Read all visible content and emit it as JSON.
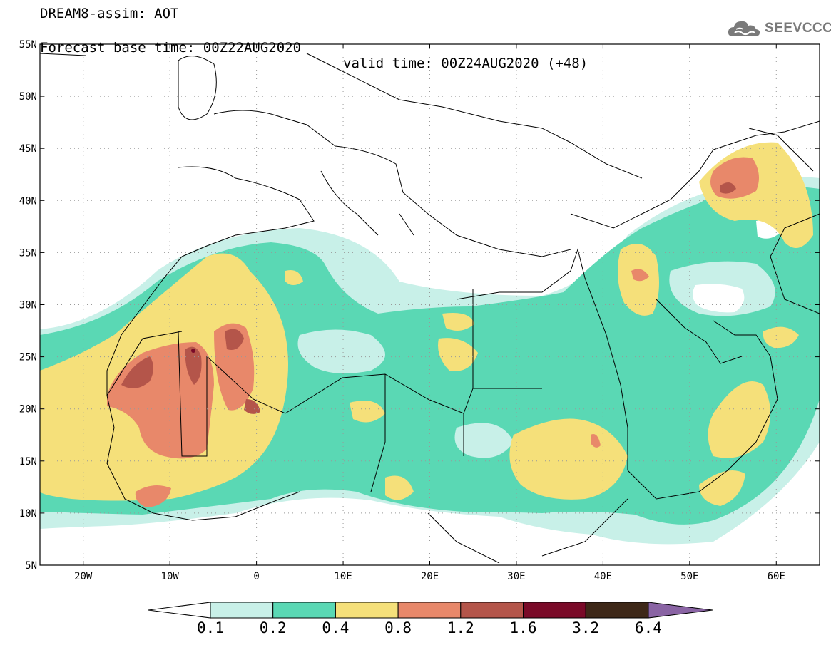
{
  "title": {
    "line1": "DREAM8-assim: AOT",
    "base_time": "Forecast base time: 00Z22AUG2020",
    "valid_time": "valid time: 00Z24AUG2020 (+48)"
  },
  "logo": {
    "text": "SEEVCCC",
    "icon": "cloud-icon"
  },
  "map": {
    "lon_range": [
      -25,
      65
    ],
    "lat_range": [
      5,
      55
    ],
    "lon_ticks": [
      {
        "value": -20,
        "label": "20W"
      },
      {
        "value": -10,
        "label": "10W"
      },
      {
        "value": 0,
        "label": "0"
      },
      {
        "value": 10,
        "label": "10E"
      },
      {
        "value": 20,
        "label": "20E"
      },
      {
        "value": 30,
        "label": "30E"
      },
      {
        "value": 40,
        "label": "40E"
      },
      {
        "value": 50,
        "label": "50E"
      },
      {
        "value": 60,
        "label": "60E"
      }
    ],
    "lat_ticks": [
      {
        "value": 5,
        "label": "5N"
      },
      {
        "value": 10,
        "label": "10N"
      },
      {
        "value": 15,
        "label": "15N"
      },
      {
        "value": 20,
        "label": "20N"
      },
      {
        "value": 25,
        "label": "25N"
      },
      {
        "value": 30,
        "label": "30N"
      },
      {
        "value": 35,
        "label": "35N"
      },
      {
        "value": 40,
        "label": "40N"
      },
      {
        "value": 45,
        "label": "45N"
      },
      {
        "value": 50,
        "label": "50N"
      },
      {
        "value": 55,
        "label": "55N"
      }
    ]
  },
  "colorbar": {
    "levels": [
      "0.1",
      "0.2",
      "0.4",
      "0.8",
      "1.2",
      "1.6",
      "3.2",
      "6.4"
    ],
    "colors": [
      "#c8f0e8",
      "#5ad8b4",
      "#f5e07a",
      "#e8886a",
      "#b4554a",
      "#7a0a28",
      "#3e2818"
    ],
    "below_color": "#ffffff",
    "above_color": "#8a64a4"
  }
}
